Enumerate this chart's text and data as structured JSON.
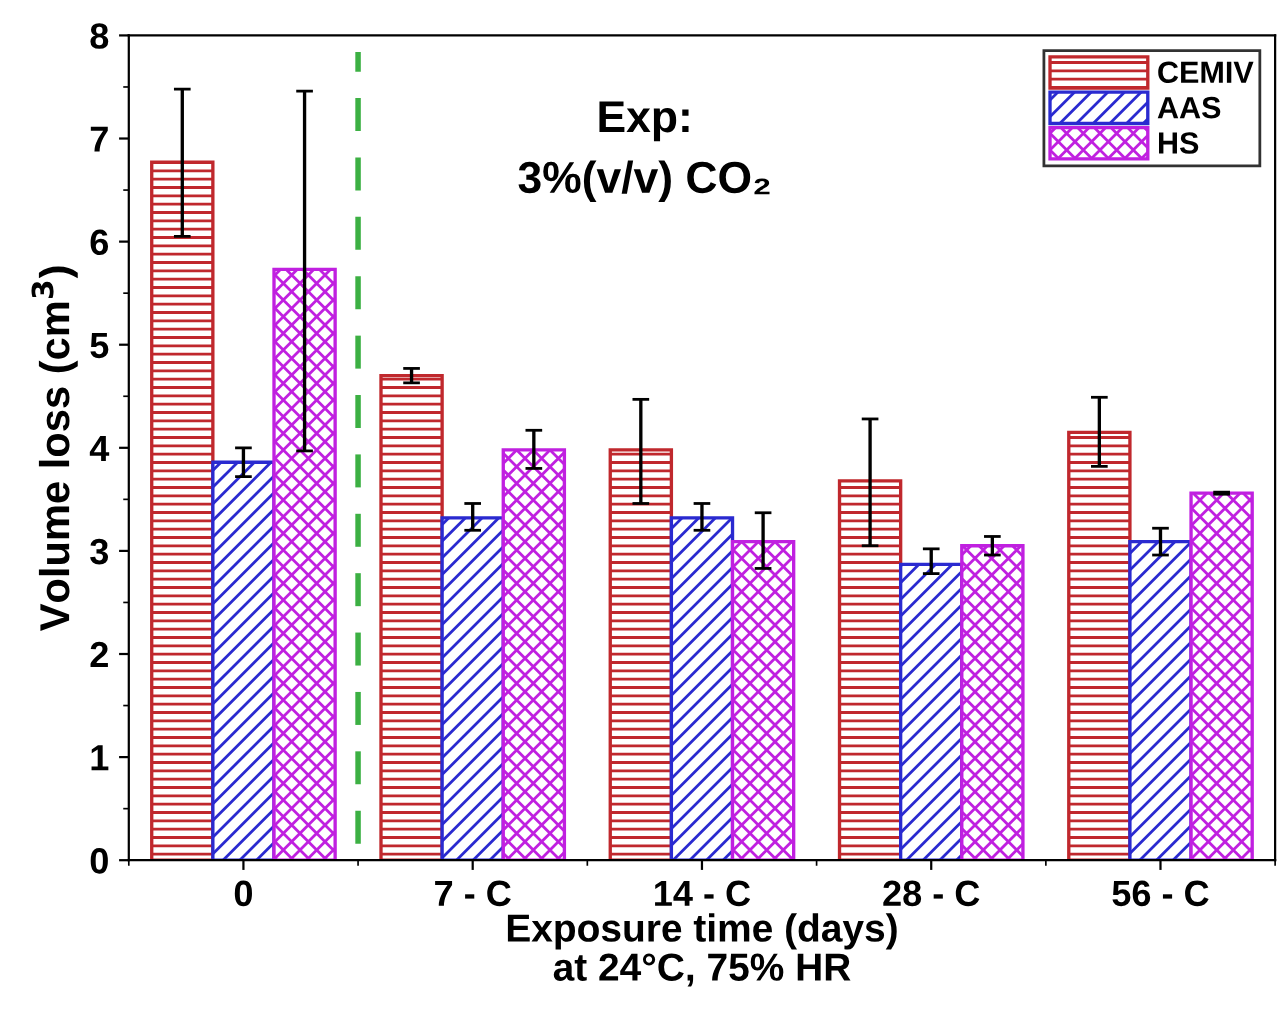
{
  "chart_data": {
    "type": "bar",
    "xlabel": "Exposure time (days)\nat 24°C, 75% HR",
    "ylabel": "Volume loss (cm$^{3}$)",
    "categories": [
      "0",
      "7 - C",
      "14 - C",
      "28 - C",
      "56 - C"
    ],
    "series": [
      {
        "name": "CEMIV",
        "color": "#c0282d",
        "values": [
          6.77,
          4.7,
          3.98,
          3.68,
          4.15
        ],
        "errors": [
          [
            6.05,
            7.48
          ],
          [
            4.63,
            4.77
          ],
          [
            3.46,
            4.47
          ],
          [
            3.05,
            4.28
          ],
          [
            3.82,
            4.49
          ]
        ]
      },
      {
        "name": "AAS",
        "color": "#2a2ad0",
        "values": [
          3.86,
          3.32,
          3.32,
          2.87,
          3.09
        ],
        "errors": [
          [
            3.72,
            4.0
          ],
          [
            3.2,
            3.46
          ],
          [
            3.2,
            3.46
          ],
          [
            2.78,
            3.02
          ],
          [
            2.96,
            3.22
          ]
        ]
      },
      {
        "name": "HS",
        "color": "#c020e0",
        "values": [
          5.73,
          3.98,
          3.09,
          3.05,
          3.56
        ],
        "errors": [
          [
            3.97,
            7.46
          ],
          [
            3.8,
            4.17
          ],
          [
            2.83,
            3.37
          ],
          [
            2.96,
            3.14
          ],
          [
            3.55,
            3.57
          ]
        ]
      }
    ],
    "ylim": [
      0,
      8
    ],
    "yticks": [
      0,
      1,
      2,
      3,
      4,
      5,
      6,
      7,
      8
    ],
    "annotations": [
      "Exp:\n3%(v/v) CO₂"
    ],
    "legend": "top right",
    "grid": false
  }
}
